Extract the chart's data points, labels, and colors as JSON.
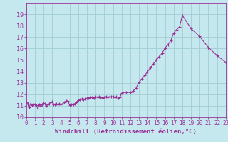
{
  "xlabel": "Windchill (Refroidissement éolien,°C)",
  "bg_color": "#c5e8ee",
  "grid_color": "#a0cdd4",
  "line_color": "#993399",
  "ylim": [
    10,
    20
  ],
  "xlim": [
    0,
    23
  ],
  "yticks": [
    10,
    11,
    12,
    13,
    14,
    15,
    16,
    17,
    18,
    19
  ],
  "xticks": [
    0,
    1,
    2,
    3,
    4,
    5,
    6,
    7,
    8,
    9,
    10,
    11,
    12,
    13,
    14,
    15,
    16,
    17,
    18,
    19,
    20,
    21,
    22,
    23
  ],
  "x_vals": [
    0.0,
    0.17,
    0.33,
    0.5,
    0.67,
    0.83,
    1.0,
    1.17,
    1.33,
    1.5,
    1.67,
    1.83,
    2.0,
    2.17,
    2.33,
    2.5,
    2.67,
    2.83,
    3.0,
    3.17,
    3.33,
    3.5,
    3.67,
    3.83,
    4.0,
    4.2,
    4.4,
    4.6,
    4.8,
    5.0,
    5.2,
    5.4,
    5.6,
    5.8,
    6.0,
    6.2,
    6.4,
    6.6,
    6.8,
    7.0,
    7.2,
    7.4,
    7.6,
    7.8,
    8.0,
    8.2,
    8.4,
    8.6,
    8.8,
    9.0,
    9.2,
    9.4,
    9.6,
    9.8,
    10.0,
    10.2,
    10.4,
    10.6,
    10.8,
    11.0,
    11.5,
    12.0,
    12.33,
    12.67,
    13.0,
    13.33,
    13.67,
    14.0,
    14.33,
    14.67,
    15.0,
    15.33,
    15.67,
    16.0,
    16.33,
    16.67,
    17.0,
    17.33,
    17.67,
    18.0,
    19.0,
    20.0,
    21.0,
    22.0,
    23.0
  ],
  "y_vals": [
    11.3,
    11.15,
    10.85,
    11.2,
    11.05,
    11.1,
    11.1,
    11.05,
    10.75,
    11.1,
    11.0,
    11.1,
    11.25,
    11.15,
    11.0,
    11.1,
    11.2,
    11.3,
    11.35,
    11.1,
    11.1,
    11.15,
    11.1,
    11.2,
    11.1,
    11.2,
    11.3,
    11.4,
    11.45,
    11.05,
    11.1,
    11.1,
    11.2,
    11.3,
    11.5,
    11.55,
    11.6,
    11.55,
    11.6,
    11.65,
    11.7,
    11.72,
    11.75,
    11.7,
    11.8,
    11.75,
    11.8,
    11.75,
    11.7,
    11.75,
    11.8,
    11.75,
    11.8,
    11.78,
    11.8,
    11.75,
    11.8,
    11.7,
    11.75,
    12.1,
    12.2,
    12.15,
    12.3,
    12.55,
    13.05,
    13.35,
    13.65,
    14.0,
    14.35,
    14.65,
    15.0,
    15.3,
    15.6,
    16.05,
    16.35,
    16.7,
    17.35,
    17.65,
    17.9,
    18.9,
    17.75,
    17.05,
    16.1,
    15.4,
    14.8
  ]
}
